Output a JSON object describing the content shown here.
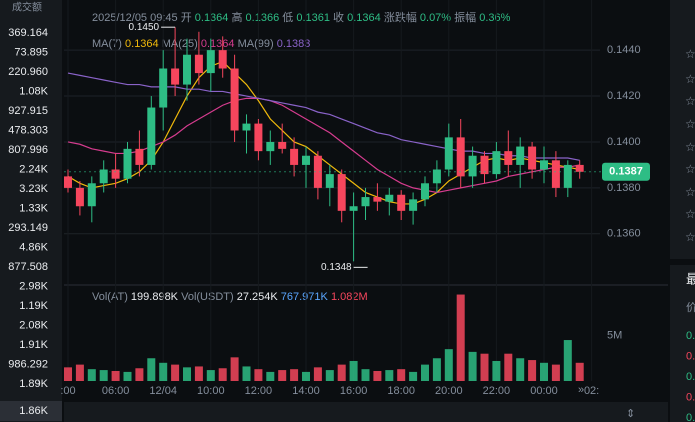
{
  "sidebar": {
    "header": "成交额",
    "values": [
      "369.164",
      "73.895",
      "220.960",
      "1.08K",
      "927.915",
      "478.303",
      "807.996",
      "2.24K",
      "3.23K",
      "1.33K",
      "293.149",
      "4.86K",
      "877.508",
      "2.98K",
      "1.19K",
      "2.08K",
      "1.91K",
      "986.292",
      "1.89K"
    ],
    "selected": "1.86K"
  },
  "info_bar": {
    "time": "2025/12/05 09:45",
    "fields": [
      {
        "label": "开",
        "value": "0.1364"
      },
      {
        "label": "高",
        "value": "0.1366"
      },
      {
        "label": "低",
        "value": "0.1361"
      },
      {
        "label": "收",
        "value": "0.1364"
      },
      {
        "label": "涨跌幅",
        "value": "0.07%"
      },
      {
        "label": "振幅",
        "value": "0.36%"
      }
    ]
  },
  "right_panel": {
    "title": "最",
    "subtitle": "价",
    "rows": [
      "0.",
      "0.",
      "0.",
      "0.",
      "0."
    ]
  },
  "chart_data": {
    "type": "candlestick",
    "ma_legend": [
      {
        "label": "MA(7)",
        "value": "0.1364"
      },
      {
        "label": "MA(25)",
        "value": "0.1364"
      },
      {
        "label": "MA(99)",
        "value": "0.1383"
      }
    ],
    "vol_legend": [
      {
        "label": "Vol(AT)",
        "value": "199.898K"
      },
      {
        "label": "Vol(USDT)",
        "value": "27.254K"
      },
      {
        "label": "",
        "value": "767.971K"
      },
      {
        "label": "",
        "value": "1.082M"
      }
    ],
    "time_labels": [
      ":00",
      "06:00",
      "12/04",
      "10:00",
      "12:00",
      "14:00",
      "16:00",
      "18:00",
      "20:00",
      "22:00",
      "00:00",
      "02:"
    ],
    "up_color": "#2ebd85",
    "down_color": "#f6465d",
    "candles": [
      [
        0.1385,
        0.1388,
        0.1378,
        0.138
      ],
      [
        0.138,
        0.1383,
        0.1368,
        0.1372
      ],
      [
        0.1372,
        0.1385,
        0.1365,
        0.1382
      ],
      [
        0.1382,
        0.1392,
        0.1378,
        0.1388
      ],
      [
        0.1388,
        0.1395,
        0.138,
        0.1384
      ],
      [
        0.1384,
        0.14,
        0.1382,
        0.1397
      ],
      [
        0.1397,
        0.1405,
        0.1385,
        0.139
      ],
      [
        0.139,
        0.142,
        0.1388,
        0.1415
      ],
      [
        0.1415,
        0.144,
        0.1405,
        0.1432
      ],
      [
        0.1432,
        0.145,
        0.142,
        0.1425
      ],
      [
        0.1425,
        0.1445,
        0.1418,
        0.1438
      ],
      [
        0.1438,
        0.1448,
        0.1425,
        0.143
      ],
      [
        0.143,
        0.1445,
        0.1422,
        0.144
      ],
      [
        0.144,
        0.1446,
        0.1428,
        0.1432
      ],
      [
        0.1432,
        0.1438,
        0.14,
        0.1405
      ],
      [
        0.1405,
        0.1412,
        0.1395,
        0.1408
      ],
      [
        0.1408,
        0.141,
        0.1392,
        0.1396
      ],
      [
        0.1396,
        0.1405,
        0.139,
        0.14
      ],
      [
        0.14,
        0.1408,
        0.1395,
        0.1397
      ],
      [
        0.1397,
        0.1402,
        0.1385,
        0.139
      ],
      [
        0.139,
        0.1398,
        0.138,
        0.1394
      ],
      [
        0.1394,
        0.1396,
        0.1375,
        0.138
      ],
      [
        0.138,
        0.139,
        0.1372,
        0.1386
      ],
      [
        0.1386,
        0.1388,
        0.1365,
        0.137
      ],
      [
        0.137,
        0.1378,
        0.1348,
        0.1372
      ],
      [
        0.1372,
        0.138,
        0.1366,
        0.1376
      ],
      [
        0.1376,
        0.1382,
        0.137,
        0.1374
      ],
      [
        0.1374,
        0.138,
        0.1368,
        0.1377
      ],
      [
        0.1377,
        0.1379,
        0.1366,
        0.137
      ],
      [
        0.137,
        0.1378,
        0.1364,
        0.1375
      ],
      [
        0.1375,
        0.1385,
        0.1372,
        0.1382
      ],
      [
        0.1382,
        0.1392,
        0.1378,
        0.1388
      ],
      [
        0.1388,
        0.1408,
        0.1385,
        0.1402
      ],
      [
        0.1402,
        0.141,
        0.138,
        0.1385
      ],
      [
        0.1385,
        0.1398,
        0.138,
        0.1394
      ],
      [
        0.1394,
        0.1396,
        0.1382,
        0.1386
      ],
      [
        0.1386,
        0.14,
        0.1384,
        0.1396
      ],
      [
        0.1396,
        0.1405,
        0.1385,
        0.139
      ],
      [
        0.139,
        0.1402,
        0.138,
        0.1398
      ],
      [
        0.1398,
        0.14,
        0.1384,
        0.1388
      ],
      [
        0.1388,
        0.1398,
        0.1382,
        0.1392
      ],
      [
        0.1392,
        0.1396,
        0.1376,
        0.138
      ],
      [
        0.138,
        0.1392,
        0.1376,
        0.139
      ],
      [
        0.139,
        0.1392,
        0.1384,
        0.1387
      ]
    ],
    "ma": [
      {
        "name": "MA(7)",
        "color": "#f0b90b",
        "values": [
          0.1385,
          0.1382,
          0.138,
          0.1381,
          0.1382,
          0.1384,
          0.1387,
          0.1392,
          0.14,
          0.141,
          0.142,
          0.1428,
          0.1433,
          0.1435,
          0.143,
          0.1425,
          0.1418,
          0.141,
          0.1405,
          0.14,
          0.1398,
          0.1394,
          0.139,
          0.1386,
          0.1382,
          0.1378,
          0.1376,
          0.1374,
          0.1373,
          0.1373,
          0.1375,
          0.1378,
          0.1383,
          0.1386,
          0.1389,
          0.1392,
          0.1393,
          0.1392,
          0.1393,
          0.1392,
          0.1391,
          0.139,
          0.1389,
          0.1388
        ]
      },
      {
        "name": "MA(25)",
        "color": "#d63c8f",
        "values": [
          0.14,
          0.1399,
          0.1397,
          0.1396,
          0.1395,
          0.1395,
          0.1396,
          0.1398,
          0.14,
          0.1403,
          0.1407,
          0.141,
          0.1413,
          0.1416,
          0.1418,
          0.1419,
          0.1419,
          0.1418,
          0.1416,
          0.1413,
          0.141,
          0.1407,
          0.1404,
          0.14,
          0.1396,
          0.1392,
          0.1388,
          0.1385,
          0.1382,
          0.138,
          0.1379,
          0.1378,
          0.1379,
          0.138,
          0.1381,
          0.1382,
          0.1383,
          0.1385,
          0.1386,
          0.1387,
          0.1388,
          0.1389,
          0.1389,
          0.139
        ]
      },
      {
        "name": "MA(99)",
        "color": "#8a63c9",
        "values": [
          0.143,
          0.1429,
          0.1428,
          0.1427,
          0.1426,
          0.1425,
          0.1425,
          0.1424,
          0.1424,
          0.1424,
          0.1423,
          0.1423,
          0.1422,
          0.1422,
          0.1421,
          0.142,
          0.1419,
          0.1418,
          0.1417,
          0.1416,
          0.1415,
          0.1413,
          0.1412,
          0.141,
          0.1408,
          0.1406,
          0.1404,
          0.1403,
          0.1401,
          0.14,
          0.1399,
          0.1398,
          0.1397,
          0.1396,
          0.1396,
          0.1395,
          0.1395,
          0.1394,
          0.1394,
          0.1393,
          0.1393,
          0.1393,
          0.1393,
          0.1392
        ]
      }
    ],
    "ylim": [
      0.1339,
      0.1454
    ],
    "yticks": [
      {
        "value": 0.144,
        "label": "0.1440"
      },
      {
        "value": 0.142,
        "label": "0.1420"
      },
      {
        "value": 0.14,
        "label": "0.1400"
      },
      {
        "value": 0.138,
        "label": "0.1380"
      },
      {
        "value": 0.136,
        "label": "0.1360"
      }
    ],
    "high_label": {
      "value": 0.145,
      "label": "0.1450"
    },
    "low_label": {
      "value": 0.1348,
      "label": "0.1348"
    },
    "last_price": {
      "value": 0.1387,
      "label": "0.1387"
    },
    "volumes": [
      1500000,
      1800000,
      1300000,
      1200000,
      1100000,
      1000000,
      1400000,
      2500000,
      2000000,
      1800000,
      1500000,
      1600000,
      1200000,
      1400000,
      2600000,
      1600000,
      1300000,
      1000000,
      1200000,
      1300000,
      1000000,
      1500000,
      1200000,
      1800000,
      2200000,
      1300000,
      1100000,
      1200000,
      1300000,
      1000000,
      1800000,
      2500000,
      3500000,
      9500000,
      3200000,
      3000000,
      2200000,
      3000000,
      2500000,
      2300000,
      2000000,
      1800000,
      4500000,
      2000000
    ],
    "vol_ylim": [
      0,
      10000000
    ],
    "vol_yticks": [
      {
        "value": 5000000,
        "label": "5M"
      }
    ]
  }
}
